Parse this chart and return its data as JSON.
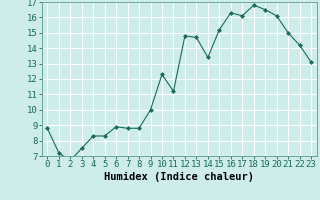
{
  "x": [
    0,
    1,
    2,
    3,
    4,
    5,
    6,
    7,
    8,
    9,
    10,
    11,
    12,
    13,
    14,
    15,
    16,
    17,
    18,
    19,
    20,
    21,
    22,
    23
  ],
  "y": [
    8.8,
    7.2,
    6.7,
    7.5,
    8.3,
    8.3,
    8.9,
    8.8,
    8.8,
    10.0,
    12.3,
    11.2,
    14.8,
    14.7,
    13.4,
    15.2,
    16.3,
    16.1,
    16.8,
    16.5,
    16.1,
    15.0,
    14.2,
    13.1
  ],
  "ylim": [
    7,
    17
  ],
  "xlim": [
    -0.5,
    23.5
  ],
  "yticks": [
    7,
    8,
    9,
    10,
    11,
    12,
    13,
    14,
    15,
    16,
    17
  ],
  "xticks": [
    0,
    1,
    2,
    3,
    4,
    5,
    6,
    7,
    8,
    9,
    10,
    11,
    12,
    13,
    14,
    15,
    16,
    17,
    18,
    19,
    20,
    21,
    22,
    23
  ],
  "xlabel": "Humidex (Indice chaleur)",
  "line_color": "#1a6b5a",
  "marker_color": "#1a6b5a",
  "bg_color": "#cdecea",
  "grid_color": "#ffffff",
  "tick_fontsize": 6.5,
  "xlabel_fontsize": 7.5
}
